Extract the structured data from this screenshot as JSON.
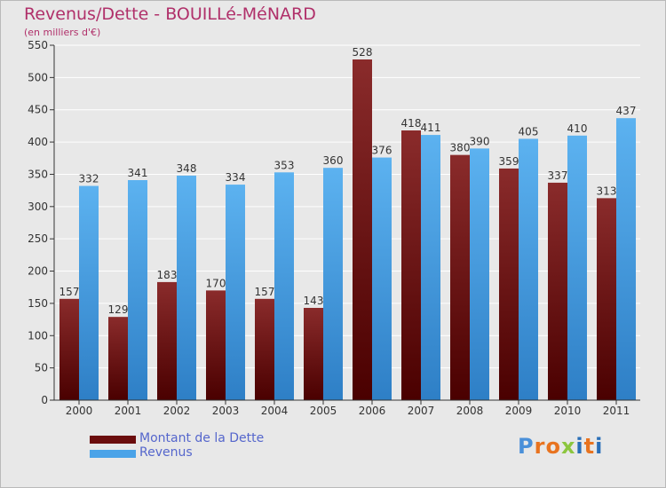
{
  "title": "Revenus/Dette - BOUILLé-MéNARD",
  "subtitle": "(en milliers d'€)",
  "logo": {
    "text": "Proxiti",
    "letters": [
      "P",
      "r",
      "o",
      "x",
      "i",
      "t",
      "i"
    ],
    "colors": [
      "#4a90d9",
      "#e8731f",
      "#e8731f",
      "#8cc63f",
      "#2a6fb8",
      "#e8731f",
      "#2a6fb8"
    ]
  },
  "colors": {
    "debt": "#6b0d0d",
    "debt_light": "#8a2b2b",
    "revenue": "#4aa3e8",
    "revenue_dark": "#2f7fc4"
  },
  "chart_data": {
    "type": "bar",
    "categories": [
      "2000",
      "2001",
      "2002",
      "2003",
      "2004",
      "2005",
      "2006",
      "2007",
      "2008",
      "2009",
      "2010",
      "2011"
    ],
    "series": [
      {
        "name": "Montant de la Dette",
        "values": [
          157,
          129,
          183,
          170,
          157,
          143,
          528,
          418,
          380,
          359,
          337,
          313
        ]
      },
      {
        "name": "Revenus",
        "values": [
          332,
          341,
          348,
          334,
          353,
          360,
          376,
          411,
          390,
          405,
          410,
          437
        ]
      }
    ],
    "ylim": [
      0,
      550
    ],
    "yticks": [
      0,
      50,
      100,
      150,
      200,
      250,
      300,
      350,
      400,
      450,
      500,
      550
    ],
    "grid": true,
    "legend": "bottom-left"
  }
}
